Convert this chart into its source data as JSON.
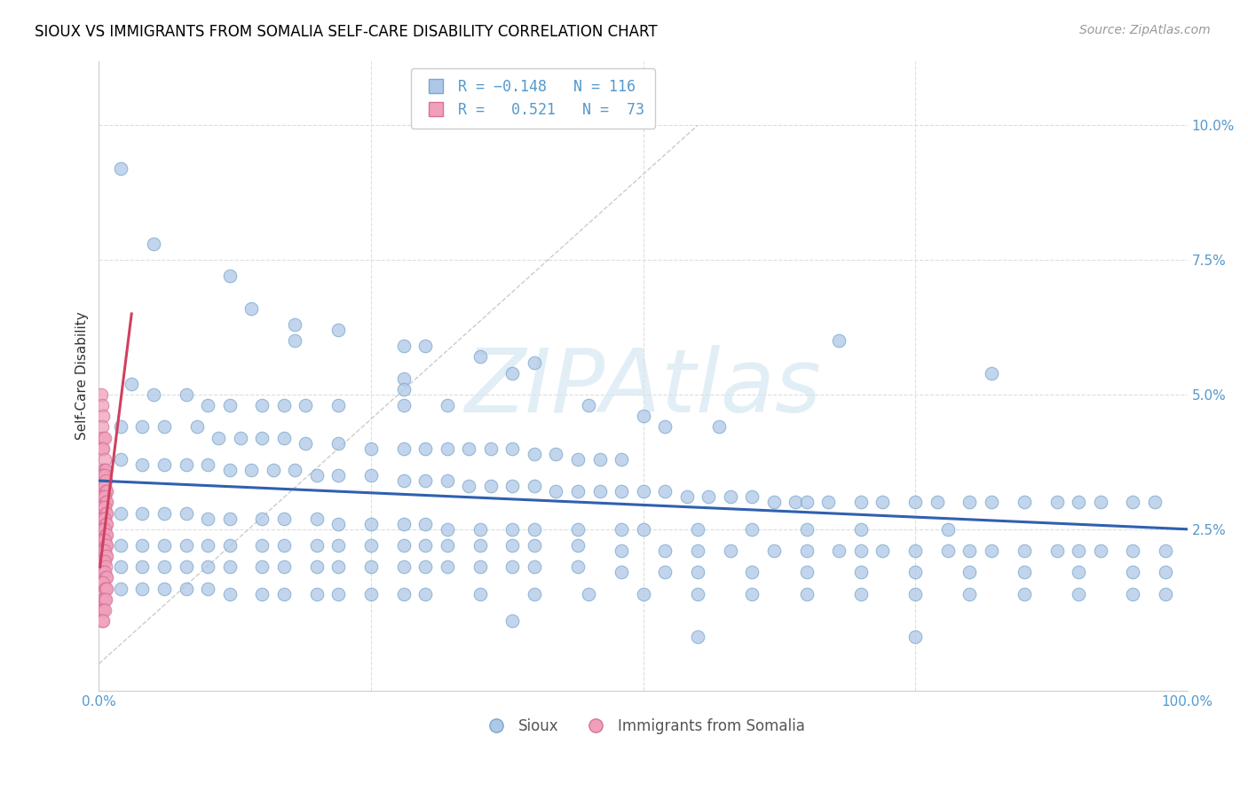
{
  "title": "SIOUX VS IMMIGRANTS FROM SOMALIA SELF-CARE DISABILITY CORRELATION CHART",
  "source": "Source: ZipAtlas.com",
  "ylabel": "Self-Care Disability",
  "xlim": [
    0.0,
    1.0
  ],
  "ylim": [
    -0.005,
    0.112
  ],
  "blue_scatter": [
    [
      0.02,
      0.092
    ],
    [
      0.05,
      0.078
    ],
    [
      0.12,
      0.072
    ],
    [
      0.14,
      0.066
    ],
    [
      0.18,
      0.063
    ],
    [
      0.18,
      0.06
    ],
    [
      0.22,
      0.062
    ],
    [
      0.28,
      0.059
    ],
    [
      0.3,
      0.059
    ],
    [
      0.35,
      0.057
    ],
    [
      0.4,
      0.056
    ],
    [
      0.38,
      0.054
    ],
    [
      0.28,
      0.053
    ],
    [
      0.28,
      0.051
    ],
    [
      0.03,
      0.052
    ],
    [
      0.05,
      0.05
    ],
    [
      0.08,
      0.05
    ],
    [
      0.1,
      0.048
    ],
    [
      0.12,
      0.048
    ],
    [
      0.15,
      0.048
    ],
    [
      0.17,
      0.048
    ],
    [
      0.19,
      0.048
    ],
    [
      0.22,
      0.048
    ],
    [
      0.28,
      0.048
    ],
    [
      0.32,
      0.048
    ],
    [
      0.68,
      0.06
    ],
    [
      0.82,
      0.054
    ],
    [
      0.45,
      0.048
    ],
    [
      0.5,
      0.046
    ],
    [
      0.52,
      0.044
    ],
    [
      0.57,
      0.044
    ],
    [
      0.02,
      0.044
    ],
    [
      0.04,
      0.044
    ],
    [
      0.06,
      0.044
    ],
    [
      0.09,
      0.044
    ],
    [
      0.11,
      0.042
    ],
    [
      0.13,
      0.042
    ],
    [
      0.15,
      0.042
    ],
    [
      0.17,
      0.042
    ],
    [
      0.19,
      0.041
    ],
    [
      0.22,
      0.041
    ],
    [
      0.25,
      0.04
    ],
    [
      0.28,
      0.04
    ],
    [
      0.3,
      0.04
    ],
    [
      0.32,
      0.04
    ],
    [
      0.34,
      0.04
    ],
    [
      0.36,
      0.04
    ],
    [
      0.38,
      0.04
    ],
    [
      0.4,
      0.039
    ],
    [
      0.42,
      0.039
    ],
    [
      0.44,
      0.038
    ],
    [
      0.46,
      0.038
    ],
    [
      0.48,
      0.038
    ],
    [
      0.02,
      0.038
    ],
    [
      0.04,
      0.037
    ],
    [
      0.06,
      0.037
    ],
    [
      0.08,
      0.037
    ],
    [
      0.1,
      0.037
    ],
    [
      0.12,
      0.036
    ],
    [
      0.14,
      0.036
    ],
    [
      0.16,
      0.036
    ],
    [
      0.18,
      0.036
    ],
    [
      0.2,
      0.035
    ],
    [
      0.22,
      0.035
    ],
    [
      0.25,
      0.035
    ],
    [
      0.28,
      0.034
    ],
    [
      0.3,
      0.034
    ],
    [
      0.32,
      0.034
    ],
    [
      0.34,
      0.033
    ],
    [
      0.36,
      0.033
    ],
    [
      0.38,
      0.033
    ],
    [
      0.4,
      0.033
    ],
    [
      0.42,
      0.032
    ],
    [
      0.44,
      0.032
    ],
    [
      0.46,
      0.032
    ],
    [
      0.48,
      0.032
    ],
    [
      0.5,
      0.032
    ],
    [
      0.52,
      0.032
    ],
    [
      0.54,
      0.031
    ],
    [
      0.56,
      0.031
    ],
    [
      0.58,
      0.031
    ],
    [
      0.6,
      0.031
    ],
    [
      0.62,
      0.03
    ],
    [
      0.64,
      0.03
    ],
    [
      0.65,
      0.03
    ],
    [
      0.67,
      0.03
    ],
    [
      0.7,
      0.03
    ],
    [
      0.72,
      0.03
    ],
    [
      0.75,
      0.03
    ],
    [
      0.77,
      0.03
    ],
    [
      0.8,
      0.03
    ],
    [
      0.82,
      0.03
    ],
    [
      0.85,
      0.03
    ],
    [
      0.88,
      0.03
    ],
    [
      0.9,
      0.03
    ],
    [
      0.92,
      0.03
    ],
    [
      0.95,
      0.03
    ],
    [
      0.97,
      0.03
    ],
    [
      0.02,
      0.028
    ],
    [
      0.04,
      0.028
    ],
    [
      0.06,
      0.028
    ],
    [
      0.08,
      0.028
    ],
    [
      0.1,
      0.027
    ],
    [
      0.12,
      0.027
    ],
    [
      0.15,
      0.027
    ],
    [
      0.17,
      0.027
    ],
    [
      0.2,
      0.027
    ],
    [
      0.22,
      0.026
    ],
    [
      0.25,
      0.026
    ],
    [
      0.28,
      0.026
    ],
    [
      0.3,
      0.026
    ],
    [
      0.32,
      0.025
    ],
    [
      0.35,
      0.025
    ],
    [
      0.38,
      0.025
    ],
    [
      0.4,
      0.025
    ],
    [
      0.44,
      0.025
    ],
    [
      0.48,
      0.025
    ],
    [
      0.5,
      0.025
    ],
    [
      0.55,
      0.025
    ],
    [
      0.6,
      0.025
    ],
    [
      0.65,
      0.025
    ],
    [
      0.7,
      0.025
    ],
    [
      0.78,
      0.025
    ],
    [
      0.02,
      0.022
    ],
    [
      0.04,
      0.022
    ],
    [
      0.06,
      0.022
    ],
    [
      0.08,
      0.022
    ],
    [
      0.1,
      0.022
    ],
    [
      0.12,
      0.022
    ],
    [
      0.15,
      0.022
    ],
    [
      0.17,
      0.022
    ],
    [
      0.2,
      0.022
    ],
    [
      0.22,
      0.022
    ],
    [
      0.25,
      0.022
    ],
    [
      0.28,
      0.022
    ],
    [
      0.3,
      0.022
    ],
    [
      0.32,
      0.022
    ],
    [
      0.35,
      0.022
    ],
    [
      0.38,
      0.022
    ],
    [
      0.4,
      0.022
    ],
    [
      0.44,
      0.022
    ],
    [
      0.48,
      0.021
    ],
    [
      0.52,
      0.021
    ],
    [
      0.55,
      0.021
    ],
    [
      0.58,
      0.021
    ],
    [
      0.62,
      0.021
    ],
    [
      0.65,
      0.021
    ],
    [
      0.68,
      0.021
    ],
    [
      0.7,
      0.021
    ],
    [
      0.72,
      0.021
    ],
    [
      0.75,
      0.021
    ],
    [
      0.78,
      0.021
    ],
    [
      0.8,
      0.021
    ],
    [
      0.82,
      0.021
    ],
    [
      0.85,
      0.021
    ],
    [
      0.88,
      0.021
    ],
    [
      0.9,
      0.021
    ],
    [
      0.92,
      0.021
    ],
    [
      0.95,
      0.021
    ],
    [
      0.98,
      0.021
    ],
    [
      0.02,
      0.018
    ],
    [
      0.04,
      0.018
    ],
    [
      0.06,
      0.018
    ],
    [
      0.08,
      0.018
    ],
    [
      0.1,
      0.018
    ],
    [
      0.12,
      0.018
    ],
    [
      0.15,
      0.018
    ],
    [
      0.17,
      0.018
    ],
    [
      0.2,
      0.018
    ],
    [
      0.22,
      0.018
    ],
    [
      0.25,
      0.018
    ],
    [
      0.28,
      0.018
    ],
    [
      0.3,
      0.018
    ],
    [
      0.32,
      0.018
    ],
    [
      0.35,
      0.018
    ],
    [
      0.38,
      0.018
    ],
    [
      0.4,
      0.018
    ],
    [
      0.44,
      0.018
    ],
    [
      0.48,
      0.017
    ],
    [
      0.52,
      0.017
    ],
    [
      0.55,
      0.017
    ],
    [
      0.6,
      0.017
    ],
    [
      0.65,
      0.017
    ],
    [
      0.7,
      0.017
    ],
    [
      0.75,
      0.017
    ],
    [
      0.8,
      0.017
    ],
    [
      0.85,
      0.017
    ],
    [
      0.9,
      0.017
    ],
    [
      0.95,
      0.017
    ],
    [
      0.98,
      0.017
    ],
    [
      0.02,
      0.014
    ],
    [
      0.04,
      0.014
    ],
    [
      0.06,
      0.014
    ],
    [
      0.08,
      0.014
    ],
    [
      0.1,
      0.014
    ],
    [
      0.12,
      0.013
    ],
    [
      0.15,
      0.013
    ],
    [
      0.17,
      0.013
    ],
    [
      0.2,
      0.013
    ],
    [
      0.22,
      0.013
    ],
    [
      0.25,
      0.013
    ],
    [
      0.28,
      0.013
    ],
    [
      0.3,
      0.013
    ],
    [
      0.35,
      0.013
    ],
    [
      0.4,
      0.013
    ],
    [
      0.45,
      0.013
    ],
    [
      0.5,
      0.013
    ],
    [
      0.55,
      0.013
    ],
    [
      0.6,
      0.013
    ],
    [
      0.65,
      0.013
    ],
    [
      0.7,
      0.013
    ],
    [
      0.75,
      0.013
    ],
    [
      0.8,
      0.013
    ],
    [
      0.85,
      0.013
    ],
    [
      0.9,
      0.013
    ],
    [
      0.95,
      0.013
    ],
    [
      0.98,
      0.013
    ],
    [
      0.38,
      0.008
    ],
    [
      0.55,
      0.005
    ],
    [
      0.75,
      0.005
    ]
  ],
  "pink_scatter": [
    [
      0.002,
      0.05
    ],
    [
      0.003,
      0.048
    ],
    [
      0.004,
      0.046
    ],
    [
      0.003,
      0.044
    ],
    [
      0.004,
      0.042
    ],
    [
      0.005,
      0.042
    ],
    [
      0.003,
      0.04
    ],
    [
      0.004,
      0.04
    ],
    [
      0.005,
      0.038
    ],
    [
      0.004,
      0.036
    ],
    [
      0.005,
      0.036
    ],
    [
      0.006,
      0.036
    ],
    [
      0.003,
      0.035
    ],
    [
      0.004,
      0.035
    ],
    [
      0.005,
      0.035
    ],
    [
      0.006,
      0.034
    ],
    [
      0.003,
      0.033
    ],
    [
      0.004,
      0.033
    ],
    [
      0.005,
      0.033
    ],
    [
      0.006,
      0.032
    ],
    [
      0.007,
      0.032
    ],
    [
      0.003,
      0.031
    ],
    [
      0.004,
      0.031
    ],
    [
      0.005,
      0.031
    ],
    [
      0.006,
      0.03
    ],
    [
      0.007,
      0.03
    ],
    [
      0.003,
      0.029
    ],
    [
      0.004,
      0.029
    ],
    [
      0.005,
      0.029
    ],
    [
      0.006,
      0.028
    ],
    [
      0.007,
      0.028
    ],
    [
      0.003,
      0.027
    ],
    [
      0.004,
      0.027
    ],
    [
      0.005,
      0.027
    ],
    [
      0.006,
      0.026
    ],
    [
      0.007,
      0.026
    ],
    [
      0.003,
      0.025
    ],
    [
      0.004,
      0.025
    ],
    [
      0.005,
      0.025
    ],
    [
      0.006,
      0.024
    ],
    [
      0.007,
      0.024
    ],
    [
      0.003,
      0.023
    ],
    [
      0.004,
      0.023
    ],
    [
      0.005,
      0.023
    ],
    [
      0.006,
      0.022
    ],
    [
      0.007,
      0.022
    ],
    [
      0.003,
      0.021
    ],
    [
      0.004,
      0.021
    ],
    [
      0.005,
      0.021
    ],
    [
      0.006,
      0.02
    ],
    [
      0.007,
      0.02
    ],
    [
      0.003,
      0.019
    ],
    [
      0.004,
      0.019
    ],
    [
      0.005,
      0.019
    ],
    [
      0.006,
      0.018
    ],
    [
      0.003,
      0.017
    ],
    [
      0.004,
      0.017
    ],
    [
      0.005,
      0.017
    ],
    [
      0.006,
      0.016
    ],
    [
      0.007,
      0.016
    ],
    [
      0.003,
      0.015
    ],
    [
      0.004,
      0.015
    ],
    [
      0.005,
      0.014
    ],
    [
      0.006,
      0.014
    ],
    [
      0.007,
      0.014
    ],
    [
      0.003,
      0.012
    ],
    [
      0.004,
      0.012
    ],
    [
      0.005,
      0.012
    ],
    [
      0.006,
      0.012
    ],
    [
      0.003,
      0.01
    ],
    [
      0.004,
      0.01
    ],
    [
      0.005,
      0.01
    ],
    [
      0.003,
      0.008
    ],
    [
      0.004,
      0.008
    ]
  ],
  "blue_line_x": [
    0.0,
    1.0
  ],
  "blue_line_y": [
    0.034,
    0.025
  ],
  "pink_line_x": [
    0.001,
    0.03
  ],
  "pink_line_y": [
    0.018,
    0.065
  ],
  "diag_line_x": [
    0.0,
    0.55
  ],
  "diag_line_y": [
    0.0,
    0.1
  ],
  "watermark": "ZIPAtlas",
  "watermark_color": "#d0e4f0",
  "bg_color": "#ffffff",
  "blue_dot_color": "#aec8e8",
  "blue_dot_edge": "#7aa8cc",
  "pink_dot_color": "#f0a0b8",
  "pink_dot_edge": "#d870a0",
  "blue_line_color": "#3060b0",
  "pink_line_color": "#d04060",
  "diag_line_color": "#cccccc",
  "grid_color": "#dddddd",
  "title_color": "#000000",
  "axis_color": "#5599cc",
  "tick_color": "#5599cc"
}
